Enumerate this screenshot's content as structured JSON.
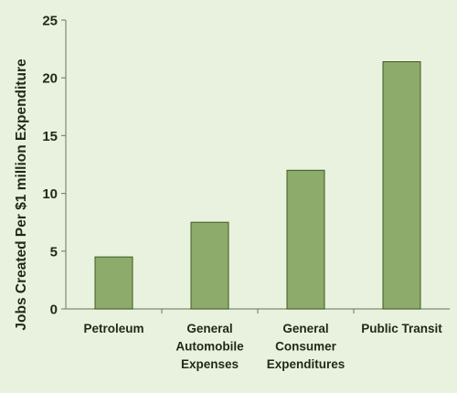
{
  "chart_data": {
    "type": "bar",
    "title": "",
    "xlabel": "",
    "ylabel": "Jobs Created Per $1 million Expenditure",
    "ylim": [
      0,
      25
    ],
    "yticks": [
      0,
      5,
      10,
      15,
      20,
      25
    ],
    "grid": false,
    "categories": [
      [
        "Petroleum"
      ],
      [
        "General",
        "Automobile",
        "Expenses"
      ],
      [
        "General",
        "Consumer",
        "Expenditures"
      ],
      [
        "Public Transit"
      ]
    ],
    "values": [
      4.5,
      7.5,
      12,
      21.4
    ],
    "bar_color": "#8dab6a",
    "bar_edge_color": "#3f5a22"
  }
}
